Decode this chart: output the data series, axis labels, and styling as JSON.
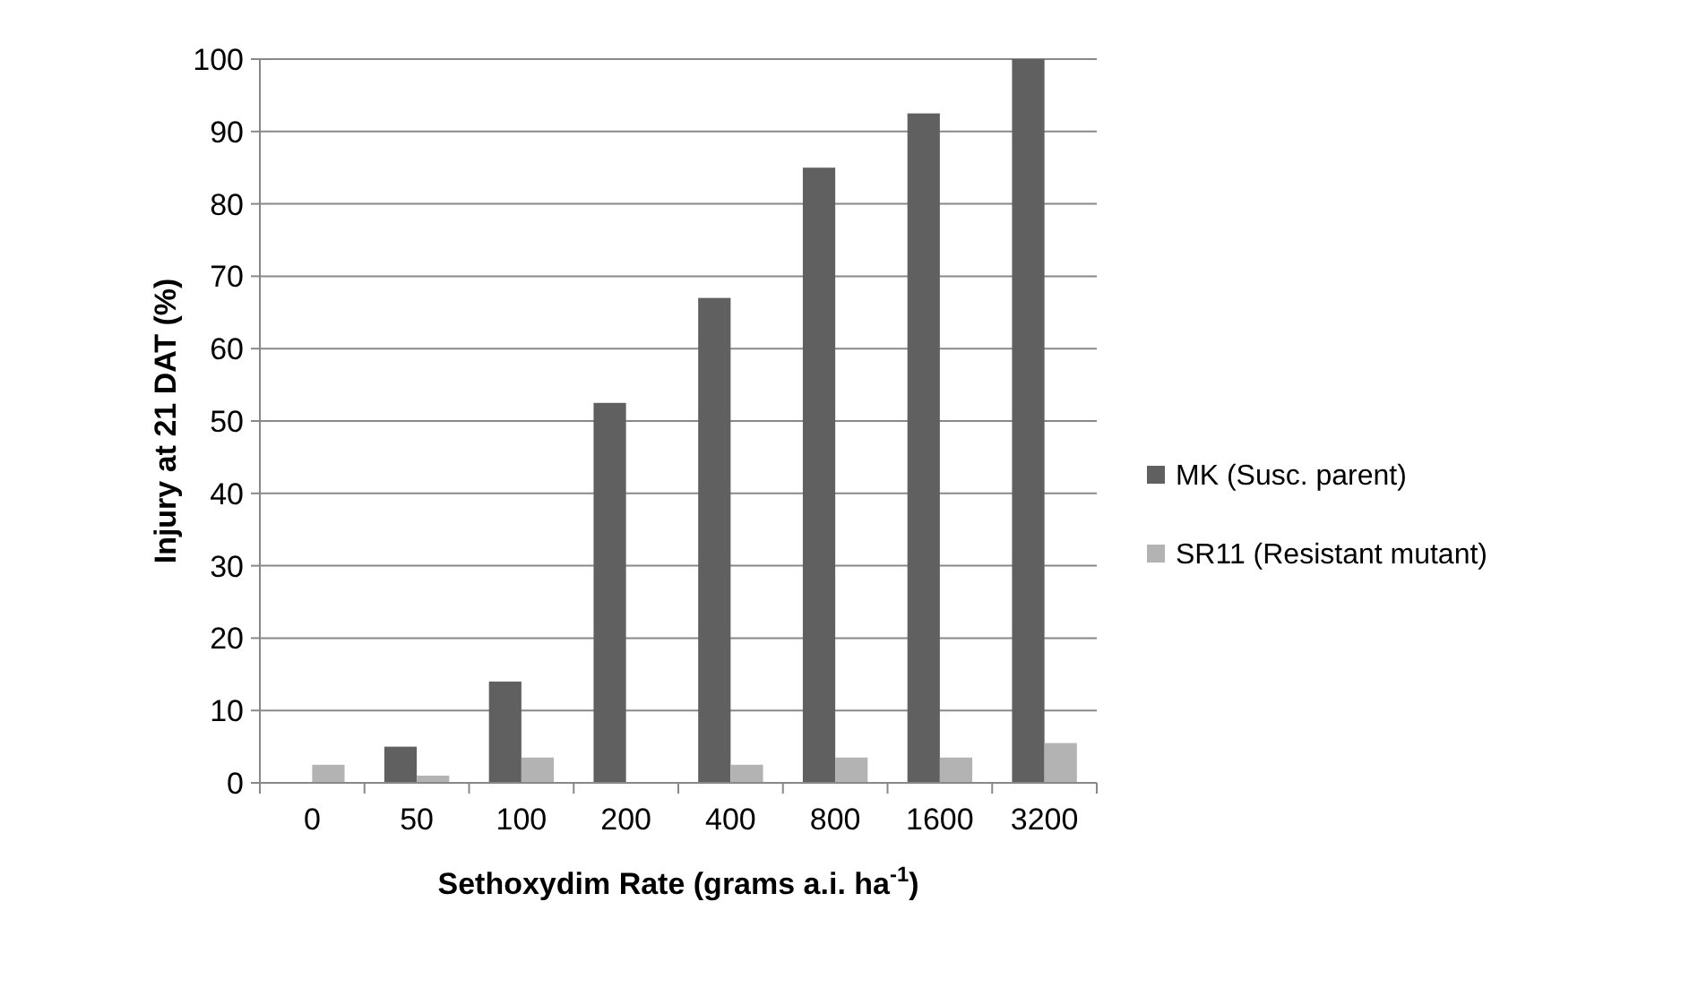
{
  "chart_data": {
    "type": "bar",
    "xlabel": "Sethoxydim Rate (grams a.i. ha$^{-1}$)",
    "ylabel": "Injury at 21 DAT (%)",
    "categories": [
      "0",
      "50",
      "100",
      "200",
      "400",
      "800",
      "1600",
      "3200"
    ],
    "series": [
      {
        "name": "MK (Susc. parent)",
        "color": "#606060",
        "values": [
          0,
          5,
          14,
          52.5,
          67,
          85,
          92.5,
          100
        ]
      },
      {
        "name": "SR11 (Resistant mutant)",
        "color": "#b3b3b3",
        "values": [
          2.5,
          1,
          3.5,
          0,
          2.5,
          3.5,
          3.5,
          5.5
        ]
      }
    ],
    "ylim": [
      0,
      100
    ],
    "yticks": [
      0,
      10,
      20,
      30,
      40,
      50,
      60,
      70,
      80,
      90,
      100
    ],
    "grid": "y",
    "legend": "right"
  }
}
